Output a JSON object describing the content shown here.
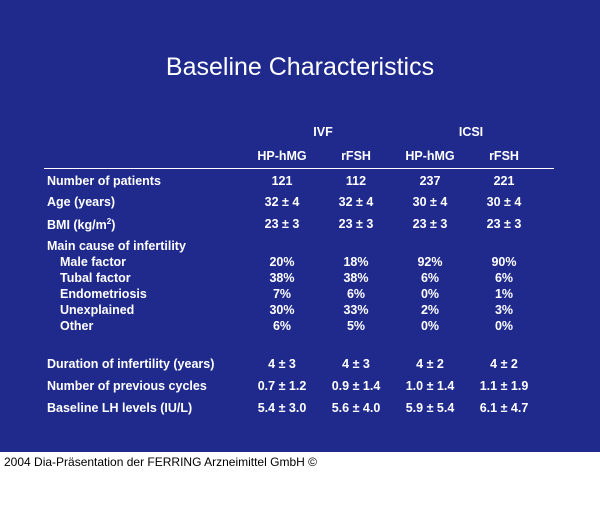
{
  "title": "Baseline Characteristics",
  "groups": [
    "IVF",
    "ICSI"
  ],
  "columns": [
    "HP-hMG",
    "rFSH",
    "HP-hMG",
    "rFSH"
  ],
  "rows": [
    {
      "label": "Number of patients",
      "values": [
        "121",
        "112",
        "237",
        "221"
      ]
    },
    {
      "label": "Age (years)",
      "values": [
        "32 ± 4",
        "32 ± 4",
        "30 ± 4",
        "30 ± 4"
      ]
    },
    {
      "label": "BMI (kg/m",
      "sup": "2",
      "label_end": ")",
      "values": [
        "23 ± 3",
        "23 ± 3",
        "23 ± 3",
        "23 ± 3"
      ]
    },
    {
      "label": "Main cause of infertility",
      "values": [
        "",
        "",
        "",
        ""
      ]
    },
    {
      "label": "Male factor",
      "values": [
        "20%",
        "18%",
        "92%",
        "90%"
      ]
    },
    {
      "label": "Tubal factor",
      "values": [
        "38%",
        "38%",
        "6%",
        "6%"
      ]
    },
    {
      "label": "Endometriosis",
      "values": [
        "7%",
        "6%",
        "0%",
        "1%"
      ]
    },
    {
      "label": "Unexplained",
      "values": [
        "30%",
        "33%",
        "2%",
        "3%"
      ]
    },
    {
      "label": "Other",
      "values": [
        "6%",
        "5%",
        "0%",
        "0%"
      ]
    },
    {
      "label": "Duration of infertility (years)",
      "values": [
        "4 ± 3",
        "4 ± 3",
        "4 ± 2",
        "4 ± 2"
      ]
    },
    {
      "label": "Number of previous cycles",
      "values": [
        "0.7 ± 1.2",
        "0.9 ± 1.4",
        "1.0 ± 1.4",
        "1.1 ± 1.9"
      ]
    },
    {
      "label": "Baseline LH levels (IU/L)",
      "values": [
        "5.4 ± 3.0",
        "5.6 ± 4.0",
        "5.9 ± 5.4",
        "6.1 ± 4.7"
      ]
    }
  ],
  "footer": "2004 Dia-Präsentation der FERRING Arzneimittel GmbH ©",
  "colors": {
    "background": "#1f2a8c",
    "text": "#ffffff"
  }
}
